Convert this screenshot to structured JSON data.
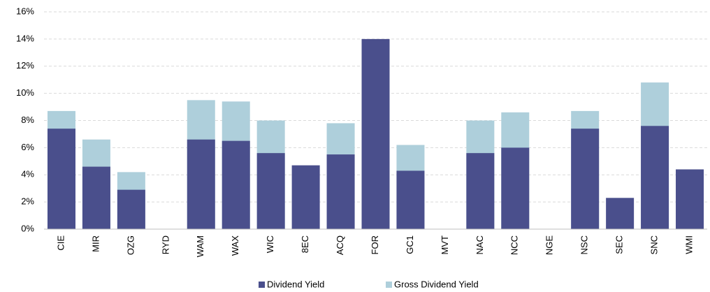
{
  "chart_data": {
    "type": "overlap-bar",
    "categories": [
      "CIE",
      "MIR",
      "OZG",
      "RYD",
      "WAM",
      "WAX",
      "WIC",
      "8EC",
      "ACQ",
      "FOR",
      "GC1",
      "MVT",
      "NAC",
      "NCC",
      "NGE",
      "NSC",
      "SEC",
      "SNC",
      "WMI"
    ],
    "series": [
      {
        "name": "Dividend Yield",
        "color": "#4a4f8c",
        "values": [
          7.4,
          4.6,
          2.9,
          null,
          6.6,
          6.5,
          5.6,
          4.7,
          5.5,
          14.0,
          4.3,
          null,
          5.6,
          6.0,
          null,
          7.4,
          2.3,
          7.6,
          4.4
        ]
      },
      {
        "name": "Gross Dividend Yield",
        "color": "#aecfdb",
        "values": [
          8.7,
          6.6,
          4.2,
          null,
          9.5,
          9.4,
          8.0,
          null,
          7.8,
          null,
          6.2,
          null,
          8.0,
          8.6,
          null,
          8.7,
          null,
          10.8,
          null
        ]
      }
    ],
    "ylim": [
      0,
      16
    ],
    "yticks": [
      {
        "value": 0,
        "label": "0%"
      },
      {
        "value": 2,
        "label": "2%"
      },
      {
        "value": 4,
        "label": "4%"
      },
      {
        "value": 6,
        "label": "6%"
      },
      {
        "value": 8,
        "label": "8%"
      },
      {
        "value": 10,
        "label": "10%"
      },
      {
        "value": 12,
        "label": "12%"
      },
      {
        "value": 14,
        "label": "14%"
      },
      {
        "value": 16,
        "label": "16%"
      }
    ],
    "grid": true
  }
}
